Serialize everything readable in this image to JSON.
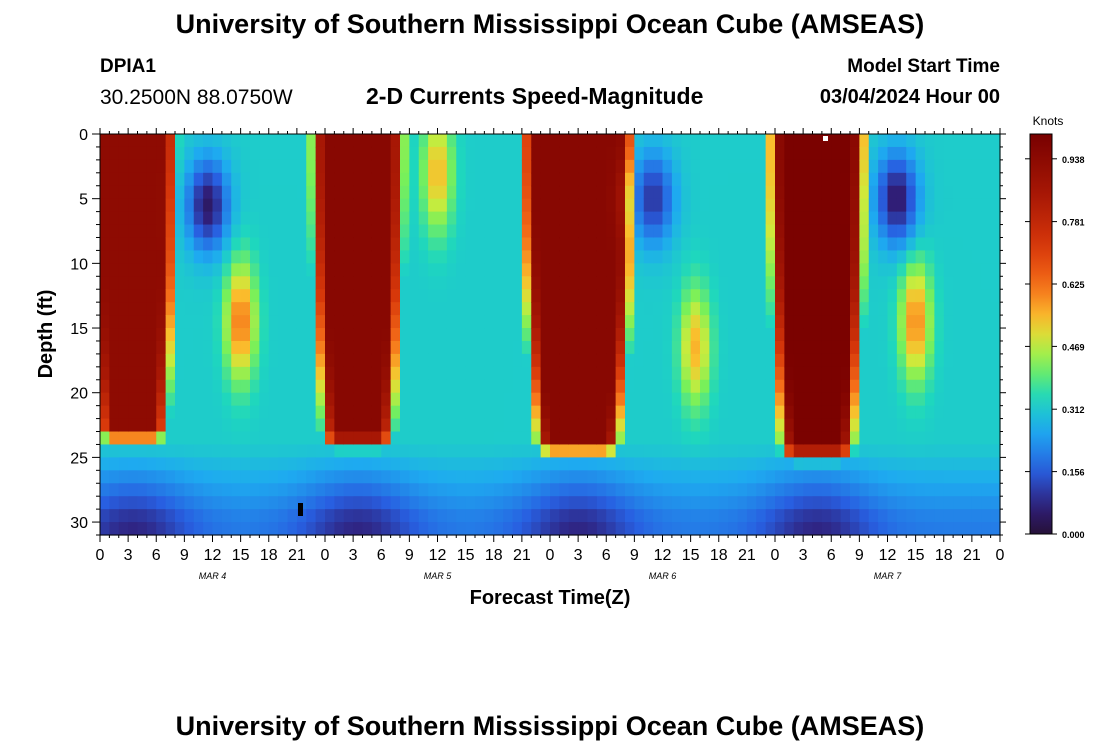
{
  "header": {
    "title": "University of Southern Mississippi Ocean Cube (AMSEAS)",
    "station": "DPIA1",
    "coordinates": "30.2500N  88.0750W",
    "subtitle": "2-D Currents Speed-Magnitude",
    "model_start_label": "Model Start Time",
    "model_start_value": "03/04/2024 Hour 00"
  },
  "footer": {
    "title": "University of Southern Mississippi Ocean Cube (AMSEAS)"
  },
  "chart_data": {
    "type": "heatmap",
    "title": "2-D Currents Speed-Magnitude",
    "xlabel": "Forecast Time(Z)",
    "ylabel": "Depth (ft)",
    "x_range_hours": [
      0,
      96
    ],
    "y_range_ft": [
      0,
      31
    ],
    "x_tick_labels": [
      "0",
      "3",
      "6",
      "9",
      "12",
      "15",
      "18",
      "21",
      "0",
      "3",
      "6",
      "9",
      "12",
      "15",
      "18",
      "21",
      "0",
      "3",
      "6",
      "9",
      "12",
      "15",
      "18",
      "21",
      "0",
      "3",
      "6",
      "9",
      "12",
      "15",
      "18",
      "21",
      "0"
    ],
    "y_ticks": [
      0,
      5,
      10,
      15,
      20,
      25,
      30
    ],
    "day_labels": [
      {
        "label": "MAR 4",
        "hour": 12
      },
      {
        "label": "MAR 5",
        "hour": 36
      },
      {
        "label": "MAR 6",
        "hour": 60
      },
      {
        "label": "MAR 7",
        "hour": 84
      }
    ],
    "colorbar": {
      "title": "Knots",
      "min": 0.0,
      "max": 1.0,
      "tick_labels": [
        "0.938",
        "0.781",
        "0.625",
        "0.469",
        "0.312",
        "0.156",
        "0.000"
      ],
      "tick_values": [
        0.938,
        0.781,
        0.625,
        0.469,
        0.312,
        0.156,
        0.0
      ]
    },
    "strong_current_pulses": [
      {
        "center_hour": 3.5,
        "half_width_hours": 3.2,
        "max_depth_ft": 22.5,
        "speed_knots": 0.93
      },
      {
        "center_hour": 27.5,
        "half_width_hours": 3.4,
        "max_depth_ft": 23.0,
        "speed_knots": 0.95
      },
      {
        "center_hour": 51.0,
        "half_width_hours": 4.5,
        "max_depth_ft": 23.5,
        "speed_knots": 0.95
      },
      {
        "center_hour": 76.5,
        "half_width_hours": 3.6,
        "max_depth_ft": 24.0,
        "speed_knots": 0.99
      }
    ],
    "secondary_maxima": [
      {
        "center_hour": 15.0,
        "center_depth_ft": 14.5,
        "speed_knots": 0.62
      },
      {
        "center_hour": 63.5,
        "center_depth_ft": 16.5,
        "speed_knots": 0.55
      },
      {
        "center_hour": 87.0,
        "center_depth_ft": 14.5,
        "speed_knots": 0.6
      },
      {
        "center_hour": 36.0,
        "center_depth_ft": 3.0,
        "speed_knots": 0.55
      }
    ],
    "near_surface_minima": [
      {
        "center_hour": 11.5,
        "center_depth_ft": 5.5,
        "speed_knots": 0.05
      },
      {
        "center_hour": 59.0,
        "center_depth_ft": 5.0,
        "speed_knots": 0.1
      },
      {
        "center_hour": 85.0,
        "center_depth_ft": 5.0,
        "speed_knots": 0.05
      }
    ],
    "bottom_speed_knots_typical": 0.08
  }
}
